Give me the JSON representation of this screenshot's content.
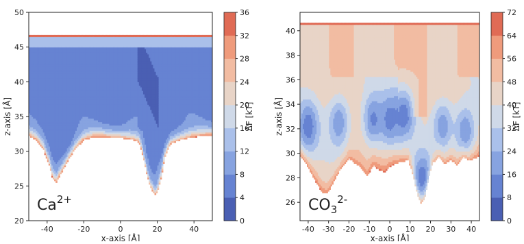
{
  "chart_data": [
    {
      "type": "heatmap",
      "panel_label": "Ca",
      "panel_label_sup": "2+",
      "xlabel": "x-axis [Å]",
      "ylabel": "z-axis [Å]",
      "colorbar_label": "ΔF [kT]",
      "xlim": [
        -50,
        50
      ],
      "ylim": [
        20,
        50
      ],
      "x_ticks": [
        -40,
        -20,
        0,
        20,
        40
      ],
      "y_ticks": [
        20,
        25,
        30,
        35,
        40,
        45,
        50
      ],
      "colorbar_ticks": [
        0,
        4,
        8,
        12,
        16,
        20,
        24,
        28,
        32,
        36
      ],
      "colorbar_levels": [
        0,
        4,
        8,
        12,
        16,
        20,
        24,
        28,
        32,
        36
      ],
      "surface_profile_x": [
        -50,
        -46,
        -42,
        -39,
        -37,
        -35,
        -32,
        -28,
        -24,
        -20,
        -15,
        -10,
        -5,
        0,
        5,
        10,
        12,
        14,
        16,
        18,
        19,
        20,
        22,
        24,
        27,
        32,
        38,
        44,
        50
      ],
      "surface_profile_z": [
        32.2,
        31.6,
        30.2,
        28.1,
        26.0,
        25.5,
        27.0,
        29.0,
        30.6,
        31.6,
        32.0,
        32.1,
        32.0,
        31.9,
        31.8,
        31.3,
        29.5,
        27.0,
        25.0,
        24.0,
        23.7,
        24.0,
        26.0,
        29.0,
        31.0,
        31.6,
        32.0,
        32.2,
        32.3
      ],
      "top_boundary_z": 46.7,
      "deep_region_dF": 6
    },
    {
      "type": "heatmap",
      "panel_label": "CO",
      "panel_label_sub": "3",
      "panel_label_sup": "2-",
      "xlabel": "x-axis [Å]",
      "ylabel": "z-axis [Å]",
      "colorbar_label": "ΔF [kT]",
      "xlim": [
        -44,
        44
      ],
      "ylim": [
        24.5,
        41.5
      ],
      "x_ticks": [
        -40,
        -30,
        -20,
        -10,
        0,
        10,
        20,
        30,
        40
      ],
      "y_ticks": [
        26,
        28,
        30,
        32,
        34,
        36,
        38,
        40
      ],
      "colorbar_ticks": [
        0,
        8,
        16,
        24,
        32,
        40,
        48,
        56,
        64,
        72
      ],
      "colorbar_levels": [
        0,
        8,
        16,
        24,
        32,
        40,
        48,
        56,
        64,
        72
      ],
      "surface_profile_x": [
        -44,
        -41,
        -38,
        -35,
        -33,
        -31,
        -29,
        -26,
        -23,
        -20,
        -17,
        -14,
        -11,
        -8,
        -5,
        -2,
        0,
        3,
        6,
        9,
        11,
        13,
        15,
        17,
        19,
        21,
        24,
        27,
        30,
        33,
        36,
        39,
        42,
        44
      ],
      "surface_profile_z": [
        29.8,
        29.2,
        28.2,
        27.3,
        26.8,
        26.7,
        27.2,
        28.2,
        29.0,
        29.6,
        29.2,
        28.8,
        28.2,
        29.0,
        28.6,
        28.5,
        28.9,
        29.2,
        29.3,
        29.5,
        28.5,
        27.0,
        25.9,
        26.3,
        28.0,
        29.2,
        29.7,
        29.2,
        29.5,
        29.0,
        29.7,
        29.4,
        29.6,
        29.8
      ],
      "top_boundary_z": 40.6,
      "wells": [
        {
          "x": -40,
          "z": 32.2,
          "dF": 10
        },
        {
          "x": -25,
          "z": 32.5,
          "dF": 18
        },
        {
          "x": -8,
          "z": 32.8,
          "dF": 14
        },
        {
          "x": 0,
          "z": 32.8,
          "dF": 12
        },
        {
          "x": 7,
          "z": 33.2,
          "dF": 10
        },
        {
          "x": 16,
          "z": 28.0,
          "dF": 10
        },
        {
          "x": 26,
          "z": 32.2,
          "dF": 18
        },
        {
          "x": 37,
          "z": 31.8,
          "dF": 16
        }
      ]
    }
  ],
  "colors": {
    "levels": [
      "#4a5fb3",
      "#6683d2",
      "#87a3e0",
      "#aac0ea",
      "#cfd9e8",
      "#e8d4c7",
      "#f2bca2",
      "#ef9b7c",
      "#e06b55",
      "#c93b3a"
    ],
    "axis": "#222222"
  }
}
